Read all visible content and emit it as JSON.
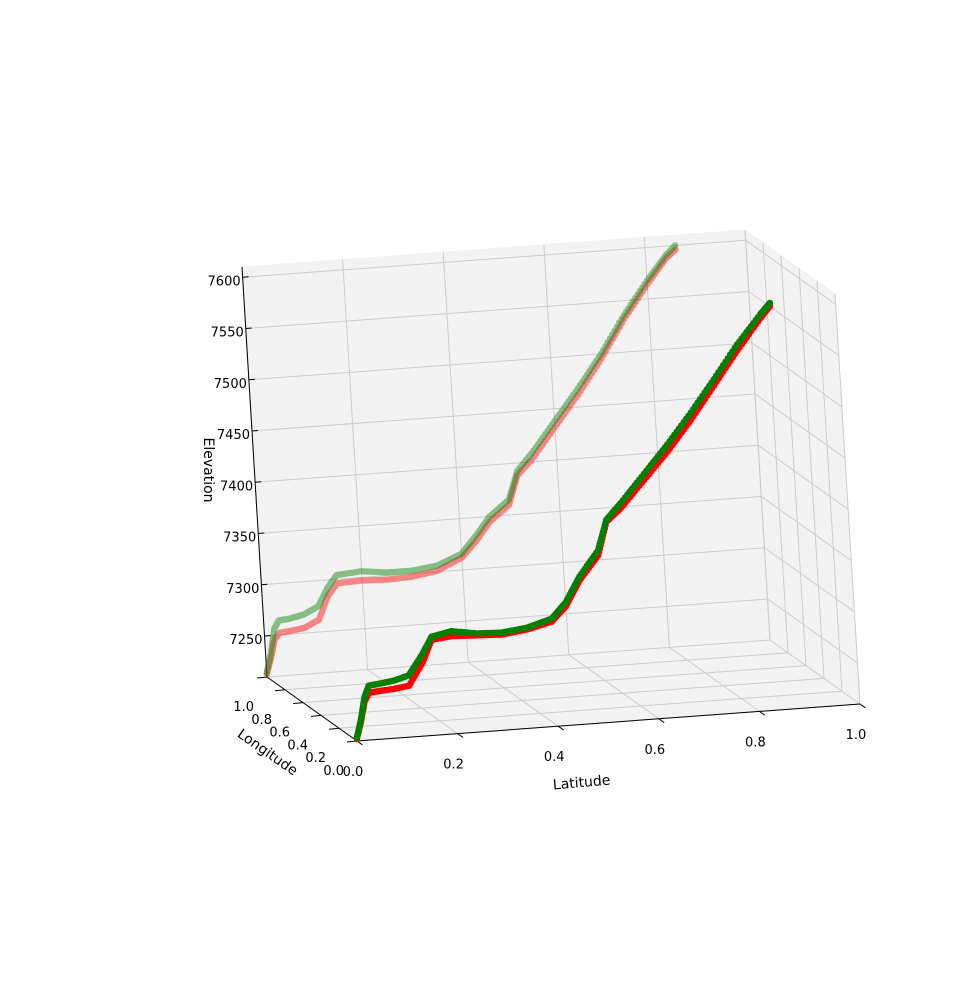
{
  "chart_data": {
    "type": "scatter",
    "projection": "3d",
    "title": "",
    "xlabel": "Latitude",
    "ylabel": "Longitude",
    "zlabel": "Elevation",
    "xlim": [
      0.0,
      1.0
    ],
    "ylim": [
      0.0,
      1.0
    ],
    "zlim": [
      7210,
      7610
    ],
    "x_ticks": [
      "0.0",
      "0.2",
      "0.4",
      "0.6",
      "0.8",
      "1.0"
    ],
    "y_ticks": [
      "0.0",
      "0.2",
      "0.4",
      "0.6",
      "0.8",
      "1.0"
    ],
    "z_ticks": [
      "7250",
      "7300",
      "7350",
      "7400",
      "7450",
      "7500",
      "7550",
      "7600"
    ],
    "grid": true,
    "colors": {
      "series_a": "#ff0000",
      "series_b": "#008000",
      "pane": "#f2f2f2",
      "grid": "#cccccc"
    },
    "series": [
      {
        "color": "#ff0000",
        "points": [
          {
            "x": 0.0,
            "y": 0.0,
            "z": 7212
          },
          {
            "x": 0.01,
            "y": 0.0,
            "z": 7228
          },
          {
            "x": 0.02,
            "y": 0.0,
            "z": 7248
          },
          {
            "x": 0.03,
            "y": 0.0,
            "z": 7256
          },
          {
            "x": 0.05,
            "y": 0.0,
            "z": 7257
          },
          {
            "x": 0.08,
            "y": 0.0,
            "z": 7258
          },
          {
            "x": 0.11,
            "y": 0.0,
            "z": 7260
          },
          {
            "x": 0.14,
            "y": 0.0,
            "z": 7282
          },
          {
            "x": 0.16,
            "y": 0.0,
            "z": 7303
          },
          {
            "x": 0.2,
            "y": 0.0,
            "z": 7305
          },
          {
            "x": 0.25,
            "y": 0.0,
            "z": 7304
          },
          {
            "x": 0.3,
            "y": 0.0,
            "z": 7303
          },
          {
            "x": 0.35,
            "y": 0.0,
            "z": 7306
          },
          {
            "x": 0.4,
            "y": 0.0,
            "z": 7312
          },
          {
            "x": 0.43,
            "y": 0.0,
            "z": 7326
          },
          {
            "x": 0.46,
            "y": 0.0,
            "z": 7350
          },
          {
            "x": 0.5,
            "y": 0.0,
            "z": 7373
          },
          {
            "x": 0.52,
            "y": 0.0,
            "z": 7405
          },
          {
            "x": 0.55,
            "y": 0.0,
            "z": 7417
          },
          {
            "x": 0.6,
            "y": 0.0,
            "z": 7443
          },
          {
            "x": 0.65,
            "y": 0.0,
            "z": 7469
          },
          {
            "x": 0.7,
            "y": 0.0,
            "z": 7498
          },
          {
            "x": 0.75,
            "y": 0.0,
            "z": 7530
          },
          {
            "x": 0.8,
            "y": 0.0,
            "z": 7562
          },
          {
            "x": 0.85,
            "y": 0.0,
            "z": 7592
          },
          {
            "x": 0.87,
            "y": 0.0,
            "z": 7603
          }
        ]
      },
      {
        "color": "#008000",
        "points": [
          {
            "x": 0.0,
            "y": 0.0,
            "z": 7213
          },
          {
            "x": 0.01,
            "y": 0.0,
            "z": 7230
          },
          {
            "x": 0.02,
            "y": 0.0,
            "z": 7252
          },
          {
            "x": 0.03,
            "y": 0.0,
            "z": 7263
          },
          {
            "x": 0.05,
            "y": 0.0,
            "z": 7264
          },
          {
            "x": 0.08,
            "y": 0.0,
            "z": 7266
          },
          {
            "x": 0.11,
            "y": 0.0,
            "z": 7270
          },
          {
            "x": 0.14,
            "y": 0.0,
            "z": 7290
          },
          {
            "x": 0.16,
            "y": 0.0,
            "z": 7306
          },
          {
            "x": 0.2,
            "y": 0.0,
            "z": 7310
          },
          {
            "x": 0.25,
            "y": 0.0,
            "z": 7306
          },
          {
            "x": 0.3,
            "y": 0.0,
            "z": 7305
          },
          {
            "x": 0.35,
            "y": 0.0,
            "z": 7308
          },
          {
            "x": 0.4,
            "y": 0.0,
            "z": 7315
          },
          {
            "x": 0.43,
            "y": 0.0,
            "z": 7330
          },
          {
            "x": 0.46,
            "y": 0.0,
            "z": 7354
          },
          {
            "x": 0.5,
            "y": 0.0,
            "z": 7378
          },
          {
            "x": 0.52,
            "y": 0.0,
            "z": 7407
          },
          {
            "x": 0.55,
            "y": 0.0,
            "z": 7422
          },
          {
            "x": 0.6,
            "y": 0.0,
            "z": 7449
          },
          {
            "x": 0.65,
            "y": 0.0,
            "z": 7476
          },
          {
            "x": 0.7,
            "y": 0.0,
            "z": 7505
          },
          {
            "x": 0.75,
            "y": 0.0,
            "z": 7536
          },
          {
            "x": 0.8,
            "y": 0.0,
            "z": 7568
          },
          {
            "x": 0.85,
            "y": 0.0,
            "z": 7596
          },
          {
            "x": 0.87,
            "y": 0.0,
            "z": 7606
          }
        ]
      },
      {
        "color": "#ff0000",
        "points": [
          {
            "x": 0.0,
            "y": 1.0,
            "z": 7213
          },
          {
            "x": 0.01,
            "y": 1.0,
            "z": 7228
          },
          {
            "x": 0.02,
            "y": 1.0,
            "z": 7246
          },
          {
            "x": 0.03,
            "y": 1.0,
            "z": 7252
          },
          {
            "x": 0.05,
            "y": 1.0,
            "z": 7253
          },
          {
            "x": 0.08,
            "y": 1.0,
            "z": 7255
          },
          {
            "x": 0.11,
            "y": 1.0,
            "z": 7262
          },
          {
            "x": 0.13,
            "y": 1.0,
            "z": 7284
          },
          {
            "x": 0.15,
            "y": 1.0,
            "z": 7296
          },
          {
            "x": 0.2,
            "y": 1.0,
            "z": 7297
          },
          {
            "x": 0.25,
            "y": 1.0,
            "z": 7296
          },
          {
            "x": 0.3,
            "y": 1.0,
            "z": 7297
          },
          {
            "x": 0.35,
            "y": 1.0,
            "z": 7301
          },
          {
            "x": 0.4,
            "y": 1.0,
            "z": 7312
          },
          {
            "x": 0.43,
            "y": 1.0,
            "z": 7327
          },
          {
            "x": 0.46,
            "y": 1.0,
            "z": 7345
          },
          {
            "x": 0.5,
            "y": 1.0,
            "z": 7360
          },
          {
            "x": 0.52,
            "y": 1.0,
            "z": 7388
          },
          {
            "x": 0.55,
            "y": 1.0,
            "z": 7402
          },
          {
            "x": 0.6,
            "y": 1.0,
            "z": 7432
          },
          {
            "x": 0.65,
            "y": 1.0,
            "z": 7462
          },
          {
            "x": 0.7,
            "y": 1.0,
            "z": 7495
          },
          {
            "x": 0.75,
            "y": 1.0,
            "z": 7532
          },
          {
            "x": 0.8,
            "y": 1.0,
            "z": 7564
          },
          {
            "x": 0.84,
            "y": 1.0,
            "z": 7588
          },
          {
            "x": 0.86,
            "y": 1.0,
            "z": 7596
          }
        ]
      },
      {
        "color": "#008000",
        "points": [
          {
            "x": 0.0,
            "y": 1.0,
            "z": 7214
          },
          {
            "x": 0.01,
            "y": 1.0,
            "z": 7232
          },
          {
            "x": 0.02,
            "y": 1.0,
            "z": 7256
          },
          {
            "x": 0.03,
            "y": 1.0,
            "z": 7264
          },
          {
            "x": 0.05,
            "y": 1.0,
            "z": 7265
          },
          {
            "x": 0.08,
            "y": 1.0,
            "z": 7268
          },
          {
            "x": 0.11,
            "y": 1.0,
            "z": 7275
          },
          {
            "x": 0.13,
            "y": 1.0,
            "z": 7292
          },
          {
            "x": 0.15,
            "y": 1.0,
            "z": 7304
          },
          {
            "x": 0.2,
            "y": 1.0,
            "z": 7306
          },
          {
            "x": 0.25,
            "y": 1.0,
            "z": 7303
          },
          {
            "x": 0.3,
            "y": 1.0,
            "z": 7303
          },
          {
            "x": 0.35,
            "y": 1.0,
            "z": 7306
          },
          {
            "x": 0.4,
            "y": 1.0,
            "z": 7316
          },
          {
            "x": 0.43,
            "y": 1.0,
            "z": 7332
          },
          {
            "x": 0.46,
            "y": 1.0,
            "z": 7350
          },
          {
            "x": 0.5,
            "y": 1.0,
            "z": 7365
          },
          {
            "x": 0.52,
            "y": 1.0,
            "z": 7392
          },
          {
            "x": 0.55,
            "y": 1.0,
            "z": 7408
          },
          {
            "x": 0.6,
            "y": 1.0,
            "z": 7438
          },
          {
            "x": 0.65,
            "y": 1.0,
            "z": 7468
          },
          {
            "x": 0.7,
            "y": 1.0,
            "z": 7500
          },
          {
            "x": 0.75,
            "y": 1.0,
            "z": 7536
          },
          {
            "x": 0.8,
            "y": 1.0,
            "z": 7568
          },
          {
            "x": 0.84,
            "y": 1.0,
            "z": 7591
          },
          {
            "x": 0.86,
            "y": 1.0,
            "z": 7600
          }
        ]
      }
    ]
  }
}
